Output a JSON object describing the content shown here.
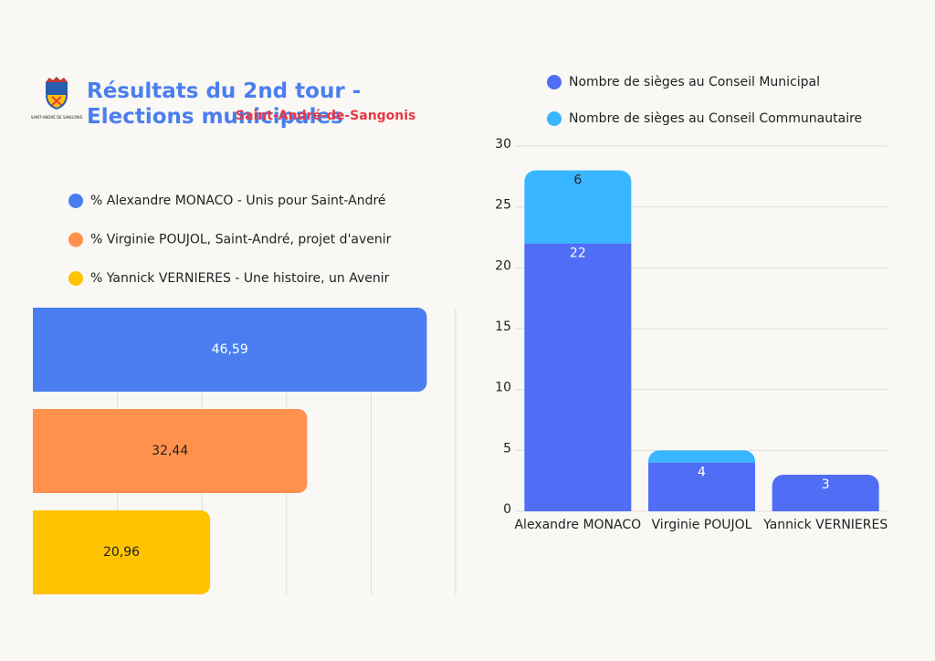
{
  "header": {
    "title": "Résultats du 2nd tour - Elections municipales",
    "subtitle": "Saint-André-de-Sangonis",
    "logo_text": "SAINT-ANDRÉ DE SANGONIS"
  },
  "chart_data": [
    {
      "type": "barh",
      "xlim": [
        0,
        50
      ],
      "xticks": [
        10,
        20,
        30,
        40,
        50
      ],
      "grid": true,
      "series": [
        {
          "name": "% Alexandre MONACO - Unis pour Saint-André",
          "color": "#4a7ef0",
          "values": [
            46.59
          ],
          "value_labels": [
            "46,59"
          ]
        },
        {
          "name": "% Virginie POUJOL, Saint-André, projet d'avenir",
          "color": "#ff914d",
          "values": [
            32.44
          ],
          "value_labels": [
            "32,44"
          ]
        },
        {
          "name": "% Yannick VERNIERES - Une histoire, un Avenir",
          "color": "#ffc300",
          "values": [
            20.96
          ],
          "value_labels": [
            "20,96"
          ]
        }
      ]
    },
    {
      "type": "stacked",
      "categories": [
        "Alexandre MONACO",
        "Virginie POUJOL",
        "Yannick VERNIERES"
      ],
      "ylim": [
        0,
        30
      ],
      "yticks": [
        0,
        5,
        10,
        15,
        20,
        25,
        30
      ],
      "grid": true,
      "series": [
        {
          "name": "Nombre de sièges au Conseil Municipal",
          "color": "#4f6df5",
          "values": [
            22,
            4,
            3
          ]
        },
        {
          "name": "Nombre de sièges au Conseil Communautaire",
          "color": "#38b6ff",
          "values": [
            6,
            1,
            0
          ]
        }
      ]
    }
  ]
}
